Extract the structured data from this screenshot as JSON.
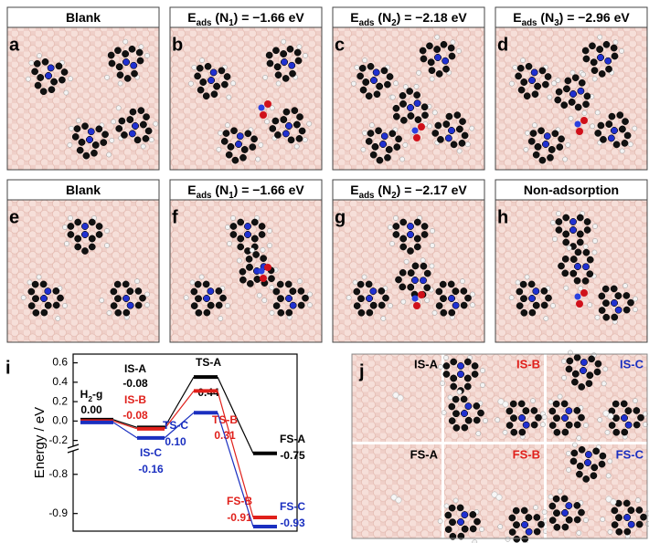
{
  "panels": [
    {
      "letter": "a",
      "title": [
        "Blank"
      ]
    },
    {
      "letter": "b",
      "title": [
        "E",
        "ads",
        " (N",
        "1",
        ") = −1.66 eV"
      ]
    },
    {
      "letter": "c",
      "title": [
        "E",
        "ads",
        " (N",
        "2",
        ") = −2.18 eV"
      ]
    },
    {
      "letter": "d",
      "title": [
        "E",
        "ads",
        " (N",
        "3",
        ") = −2.96 eV"
      ]
    },
    {
      "letter": "e",
      "title": [
        "Blank"
      ]
    },
    {
      "letter": "f",
      "title": [
        "E",
        "ads",
        " (N",
        "1",
        ") = −1.66 eV"
      ]
    },
    {
      "letter": "g",
      "title": [
        "E",
        "ads",
        " (N",
        "2",
        ") = −2.17 eV"
      ]
    },
    {
      "letter": "h",
      "title": [
        "Non-adsorption"
      ]
    }
  ],
  "energy_diagram": {
    "letter": "i",
    "type": "line",
    "y_label": "Energy / eV",
    "segments": [
      {
        "ylim": [
          -0.26,
          0.69
        ],
        "yticks": [
          0.6,
          0.4,
          0.2,
          {
            "value": 0,
            "label": "0.0"
          },
          -0.2
        ]
      },
      {
        "ylim": [
          -0.945,
          -0.74
        ],
        "yticks": [
          -0.8,
          -0.9
        ]
      }
    ],
    "start_label": [
      "H",
      "2",
      "-g"
    ],
    "series": [
      {
        "color": "#000000",
        "labels": [
          null,
          "IS-A",
          "TS-A",
          "FS-A"
        ],
        "values": [
          0,
          -0.08,
          0.44,
          -0.75
        ],
        "value_labels": [
          "0.00",
          "-0.08",
          "0.44",
          "-0.75"
        ]
      },
      {
        "color": "#e0201b",
        "labels": [
          null,
          "IS-B",
          "TS-B",
          "FS-B"
        ],
        "values": [
          0,
          -0.08,
          0.31,
          -0.91
        ],
        "value_labels": [
          "0.00",
          "-0.08",
          "0.31",
          "-0.91"
        ]
      },
      {
        "color": "#1a2fc0",
        "labels": [
          null,
          "IS-C",
          "TS-C",
          "FS-C"
        ],
        "values": [
          0,
          -0.16,
          0.1,
          -0.93
        ],
        "value_labels": [
          "0.00",
          "-0.16",
          "0.10",
          "-0.93"
        ]
      }
    ]
  },
  "snapshots": {
    "letter": "j",
    "labels": [
      {
        "text": "IS-A",
        "color": "#000000"
      },
      {
        "text": "IS-B",
        "color": "#e0201b"
      },
      {
        "text": "IS-C",
        "color": "#1a2fc0"
      },
      {
        "text": "FS-A",
        "color": "#000000"
      },
      {
        "text": "FS-B",
        "color": "#e0201b"
      },
      {
        "text": "FS-C",
        "color": "#1a2fc0"
      }
    ]
  }
}
